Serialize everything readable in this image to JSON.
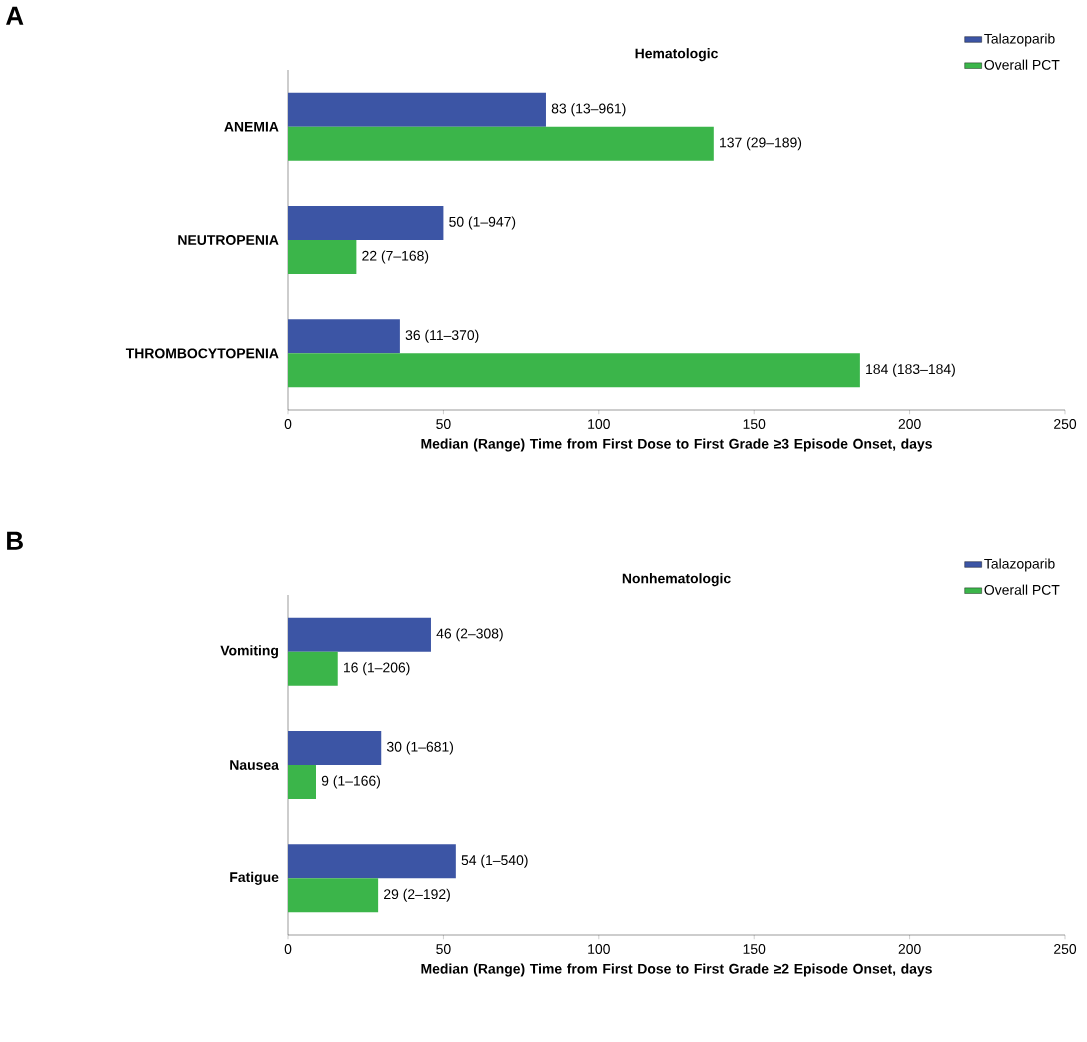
{
  "chart_data": [
    {
      "type": "bar",
      "orientation": "horizontal",
      "title": "Hematologic",
      "xlabel": "Median (Range) Time from First Dose to First Grade ≥3 Episode Onset, days",
      "annotations": [
        "A"
      ],
      "categories": [
        "ANEMIA",
        "NEUTROPENIA",
        "THROMBOCYTOPENIA"
      ],
      "series": [
        {
          "name": "Talazoparib",
          "color": "#3c55a5",
          "values": [
            83,
            50,
            36
          ],
          "value_labels": [
            "83 (13–961)",
            "50 (1–947)",
            "36 (11–370)"
          ]
        },
        {
          "name": "Overall PCT",
          "color": "#3bb54a",
          "values": [
            137,
            22,
            184
          ],
          "value_labels": [
            "137 (29–189)",
            "22 (7–168)",
            "184 (183–184)"
          ]
        }
      ],
      "xlim": [
        0,
        250
      ],
      "xticks": [
        0,
        50,
        100,
        150,
        200,
        250
      ],
      "legend": "top right"
    },
    {
      "type": "bar",
      "orientation": "horizontal",
      "title": "Nonhematologic",
      "xlabel": "Median (Range) Time from First Dose to First Grade ≥2 Episode Onset, days",
      "annotations": [
        "B"
      ],
      "categories": [
        "Vomiting",
        "Nausea",
        "Fatigue"
      ],
      "series": [
        {
          "name": "Talazoparib",
          "color": "#3c55a5",
          "values": [
            46,
            30,
            54
          ],
          "value_labels": [
            "46 (2–308)",
            "30 (1–681)",
            "54 (1–540)"
          ]
        },
        {
          "name": "Overall PCT",
          "color": "#3bb54a",
          "values": [
            16,
            9,
            29
          ],
          "value_labels": [
            "16 (1–206)",
            "9 (1–166)",
            "29 (2–192)"
          ]
        }
      ],
      "xlim": [
        0,
        250
      ],
      "xticks": [
        0,
        50,
        100,
        150,
        200,
        250
      ],
      "legend": "top right"
    }
  ]
}
